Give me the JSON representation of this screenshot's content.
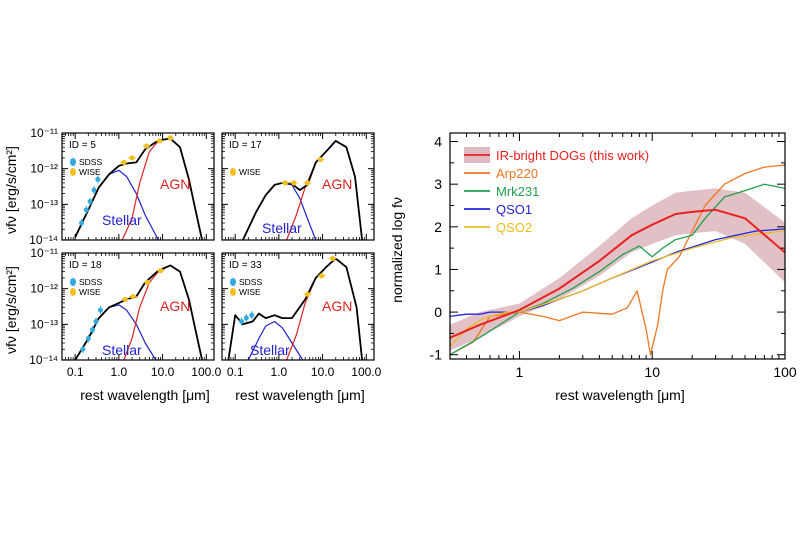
{
  "colors": {
    "stellar": "#2222cc",
    "agn": "#dd2222",
    "total": "#000000",
    "sdss": "#33aadd",
    "wise": "#f0c020",
    "dogs_line": "#e8211f",
    "dogs_band": "#c98e98",
    "arp220": "#ee7722",
    "mrk231": "#22a050",
    "qso1": "#2222dd",
    "qso2": "#eebb22"
  },
  "left_figure": {
    "ylabel": "νfν [erg/s/cm²]",
    "xlabel": "rest wavelength [μm]",
    "x_ticks": [
      "0.1",
      "1.0",
      "10.0",
      "100.0"
    ],
    "y_ticks": [
      "10⁻¹¹",
      "10⁻¹²",
      "10⁻¹³",
      "10⁻¹⁴"
    ],
    "legend": {
      "sdss": "SDSS",
      "wise": "WISE"
    },
    "component_labels": {
      "stellar": "Stellar",
      "agn": "AGN"
    }
  },
  "right_figure": {
    "xlabel": "rest wavelength [μm]",
    "ylabel": "normalized log fν",
    "x_ticks": [
      "1",
      "10",
      "100"
    ],
    "y_ticks": [
      "-1",
      "0",
      "1",
      "2",
      "3",
      "4"
    ]
  },
  "chart_data": [
    {
      "type": "line",
      "panel_label": "ID = 5",
      "xscale": "log",
      "yscale": "log",
      "xlim": [
        0.05,
        150
      ],
      "ylim": [
        1e-14,
        1e-11
      ],
      "series": [
        {
          "name": "Stellar",
          "x": [
            0.1,
            0.2,
            0.35,
            0.6,
            1.0,
            1.5,
            2.5,
            4,
            8
          ],
          "y": [
            1.2e-14,
            7e-14,
            3e-13,
            7e-13,
            9e-13,
            6e-13,
            2e-13,
            5e-14,
            1e-14
          ]
        },
        {
          "name": "AGN",
          "x": [
            1.2,
            2,
            3,
            5,
            8,
            15,
            25,
            40,
            60,
            80
          ],
          "y": [
            1e-14,
            4e-14,
            4e-13,
            3e-12,
            6e-12,
            7e-12,
            4e-12,
            5e-13,
            5e-14,
            1e-14
          ]
        },
        {
          "x": [
            0.1,
            0.2,
            0.35,
            0.6,
            1.0,
            1.5,
            2.5,
            4,
            8,
            15,
            25,
            40,
            60,
            80
          ],
          "y": [
            1.2e-14,
            7e-14,
            3e-13,
            7e-13,
            1.2e-12,
            1.4e-12,
            1.5e-12,
            3.5e-12,
            6.2e-12,
            7e-12,
            4e-12,
            5e-13,
            5e-14,
            1e-14
          ]
        }
      ],
      "sdss": {
        "x": [
          0.14,
          0.18,
          0.22,
          0.27,
          0.33
        ],
        "y": [
          3e-14,
          7e-14,
          1.2e-13,
          2.5e-13,
          5e-13
        ]
      },
      "wise": {
        "x": [
          1.3,
          2.0,
          4.3,
          8.5,
          15
        ],
        "y": [
          1.5e-12,
          2e-12,
          4.3e-12,
          6e-12,
          7.3e-12
        ]
      }
    },
    {
      "type": "line",
      "panel_label": "ID = 17",
      "xscale": "log",
      "yscale": "log",
      "xlim": [
        0.05,
        150
      ],
      "ylim": [
        1e-14,
        1e-11
      ],
      "series": [
        {
          "name": "Stellar",
          "x": [
            0.15,
            0.3,
            0.5,
            0.8,
            1.2,
            2,
            3,
            4.5,
            7
          ],
          "y": [
            1e-14,
            6e-14,
            1.8e-13,
            3.5e-13,
            4e-13,
            3.5e-13,
            1.5e-13,
            4e-14,
            1e-14
          ]
        },
        {
          "name": "AGN",
          "x": [
            1.5,
            2.5,
            4,
            7,
            12,
            20,
            35,
            55,
            80
          ],
          "y": [
            1e-14,
            5e-14,
            3e-13,
            1.5e-12,
            3e-12,
            6e-12,
            4e-12,
            6e-13,
            1e-14
          ]
        },
        {
          "x": [
            0.15,
            0.3,
            0.5,
            0.8,
            1.2,
            2,
            3,
            4.5,
            7,
            12,
            20,
            35,
            55,
            80
          ],
          "y": [
            1e-14,
            6e-14,
            1.8e-13,
            3.5e-13,
            4e-13,
            3.8e-13,
            2.5e-13,
            3.5e-13,
            1.5e-12,
            3e-12,
            6e-12,
            4e-12,
            6e-13,
            1e-14
          ]
        }
      ],
      "wise": {
        "x": [
          1.4,
          2.2,
          4.5,
          9
        ],
        "y": [
          4e-13,
          4e-13,
          4e-13,
          1.8e-12
        ]
      }
    },
    {
      "type": "line",
      "panel_label": "ID = 18",
      "xscale": "log",
      "yscale": "log",
      "xlim": [
        0.05,
        150
      ],
      "ylim": [
        1e-14,
        1e-11
      ],
      "series": [
        {
          "name": "Stellar",
          "x": [
            0.1,
            0.2,
            0.35,
            0.6,
            1.0,
            1.5,
            2.5,
            4,
            7
          ],
          "y": [
            1e-14,
            4e-14,
            1.5e-13,
            3e-13,
            3.5e-13,
            2.5e-13,
            1e-13,
            3e-14,
            1e-14
          ]
        },
        {
          "name": "AGN",
          "x": [
            1.3,
            2,
            3,
            5,
            8,
            15,
            25,
            40,
            60,
            80
          ],
          "y": [
            1e-14,
            4e-14,
            3e-13,
            1.5e-12,
            3e-12,
            4.5e-12,
            3e-12,
            5e-13,
            5e-14,
            1e-14
          ]
        },
        {
          "x": [
            0.1,
            0.2,
            0.35,
            0.6,
            1.0,
            1.5,
            2.5,
            4,
            8,
            15,
            25,
            40,
            60,
            80
          ],
          "y": [
            1e-14,
            4e-14,
            1.5e-13,
            3e-13,
            4e-13,
            5e-13,
            6e-13,
            1.5e-12,
            3.2e-12,
            4.5e-12,
            3e-12,
            5e-13,
            5e-14,
            1e-14
          ]
        }
      ],
      "sdss": {
        "x": [
          0.15,
          0.2,
          0.25,
          0.3,
          0.38
        ],
        "y": [
          2e-14,
          4e-14,
          7e-14,
          1.2e-13,
          2.5e-13
        ]
      },
      "wise": {
        "x": [
          1.4,
          2.1,
          4.5,
          9
        ],
        "y": [
          5e-13,
          6e-13,
          1.5e-12,
          3.2e-12
        ]
      }
    },
    {
      "type": "line",
      "panel_label": "ID = 33",
      "xscale": "log",
      "yscale": "log",
      "xlim": [
        0.05,
        150
      ],
      "ylim": [
        1e-14,
        1e-11
      ],
      "series": [
        {
          "name": "Stellar",
          "x": [
            0.2,
            0.35,
            0.5,
            0.8,
            1.2,
            2,
            3.5
          ],
          "y": [
            1e-14,
            4e-14,
            9e-14,
            1.2e-13,
            8e-14,
            3e-14,
            1e-14
          ]
        },
        {
          "name": "AGN",
          "x": [
            1.5,
            2.5,
            4,
            7,
            12,
            20,
            35,
            60,
            80
          ],
          "y": [
            1e-14,
            5e-14,
            4e-13,
            2e-12,
            4e-12,
            7e-12,
            4e-12,
            3e-13,
            1e-14
          ]
        },
        {
          "x": [
            0.07,
            0.1,
            0.15,
            0.25,
            0.35,
            0.5,
            0.8,
            1.2,
            2,
            4,
            7,
            12,
            20,
            35,
            60,
            80
          ],
          "y": [
            1e-14,
            1.8e-13,
            1e-13,
            1.2e-13,
            2e-13,
            1.5e-13,
            1.8e-13,
            1.5e-13,
            1.5e-13,
            5e-13,
            2e-12,
            4e-12,
            7e-12,
            4e-12,
            3e-13,
            1e-14
          ]
        }
      ],
      "sdss": {
        "x": [
          0.14,
          0.18,
          0.24
        ],
        "y": [
          1.2e-13,
          1.5e-13,
          1.8e-13
        ]
      },
      "wise": {
        "x": [
          4.5,
          9.5,
          17
        ],
        "y": [
          7e-13,
          2.3e-12,
          7e-12
        ]
      }
    },
    {
      "type": "line",
      "xscale": "log",
      "xlim": [
        0.3,
        100
      ],
      "ylim": [
        -1.1,
        4.2
      ],
      "series": [
        {
          "name": "IR-bright DOGs (this work)",
          "x": [
            0.3,
            0.5,
            1,
            2,
            4,
            7,
            10,
            15,
            20,
            30,
            50,
            100
          ],
          "y": [
            -0.6,
            -0.3,
            0.05,
            0.55,
            1.2,
            1.8,
            2.05,
            2.3,
            2.35,
            2.4,
            2.2,
            1.4
          ],
          "band_halfwidth": [
            0.3,
            0.3,
            0.15,
            0.25,
            0.35,
            0.4,
            0.45,
            0.5,
            0.5,
            0.5,
            0.6,
            0.7
          ]
        },
        {
          "name": "Arp220",
          "x": [
            0.3,
            0.45,
            0.6,
            1.0,
            1.5,
            2,
            3,
            5,
            6.5,
            7.7,
            9,
            9.7,
            11,
            12,
            13,
            16,
            20,
            25,
            35,
            50,
            70,
            100
          ],
          "y": [
            -1.0,
            -0.7,
            -0.1,
            0.0,
            -0.1,
            -0.2,
            0.0,
            -0.05,
            0.1,
            0.5,
            -0.4,
            -1.0,
            -0.3,
            0.5,
            1.0,
            1.3,
            1.9,
            2.5,
            3.0,
            3.25,
            3.4,
            3.45
          ]
        },
        {
          "name": "Mrk231",
          "x": [
            0.3,
            0.5,
            1,
            1.5,
            2.5,
            4,
            6,
            8,
            10,
            12,
            15,
            20,
            25,
            35,
            50,
            70,
            100
          ],
          "y": [
            -1.0,
            -0.6,
            0.0,
            0.2,
            0.55,
            0.95,
            1.35,
            1.55,
            1.3,
            1.5,
            1.7,
            1.8,
            2.2,
            2.7,
            2.85,
            3.0,
            2.9
          ]
        },
        {
          "name": "QSO1",
          "x": [
            0.3,
            0.4,
            0.5,
            0.6,
            1.0,
            1.5,
            2,
            3,
            5,
            8,
            15,
            30,
            60,
            100
          ],
          "y": [
            -0.1,
            -0.05,
            -0.05,
            0.0,
            0.0,
            0.15,
            0.3,
            0.5,
            0.8,
            1.05,
            1.4,
            1.7,
            1.9,
            1.95
          ]
        },
        {
          "name": "QSO2",
          "x": [
            0.3,
            0.4,
            0.5,
            0.6,
            0.8,
            1.0,
            2,
            3,
            5,
            10,
            20,
            40,
            70,
            100
          ],
          "y": [
            -0.8,
            -0.4,
            -0.2,
            -0.1,
            0.0,
            0.0,
            0.3,
            0.5,
            0.8,
            1.2,
            1.5,
            1.75,
            1.85,
            1.9
          ]
        }
      ]
    }
  ]
}
